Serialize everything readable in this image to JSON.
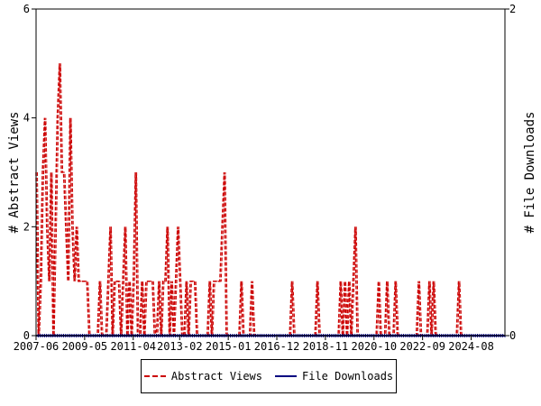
{
  "chart_data": {
    "type": "line",
    "ylabel_left": "# Abstract Views",
    "ylabel_right": "# File Downloads",
    "yleft_range": [
      0,
      6
    ],
    "yleft_ticks": [
      "0",
      "2",
      "4",
      "6"
    ],
    "yright_range": [
      0,
      2
    ],
    "yright_ticks": [
      "0",
      "2"
    ],
    "x_range": [
      "2007-06",
      "2025-12"
    ],
    "x_ticks": [
      "2007-06",
      "2009-05",
      "2011-04",
      "2013-02",
      "2015-01",
      "2016-12",
      "2018-11",
      "2020-10",
      "2022-09",
      "2024-08"
    ],
    "legend_position": "bottom-center",
    "grid": false,
    "series": [
      {
        "name": "Abstract Views",
        "color": "#cc0000",
        "style": "dashed",
        "axis": "left",
        "points": [
          [
            "2007-06",
            3
          ],
          [
            "2007-07",
            0
          ],
          [
            "2007-08",
            1
          ],
          [
            "2007-09",
            3
          ],
          [
            "2007-10",
            4
          ],
          [
            "2007-11",
            2
          ],
          [
            "2007-12",
            1
          ],
          [
            "2008-01",
            3
          ],
          [
            "2008-02",
            0
          ],
          [
            "2008-03",
            2
          ],
          [
            "2008-04",
            4
          ],
          [
            "2008-05",
            5
          ],
          [
            "2008-06",
            3
          ],
          [
            "2008-07",
            3
          ],
          [
            "2008-08",
            2
          ],
          [
            "2008-09",
            1
          ],
          [
            "2008-10",
            4
          ],
          [
            "2008-11",
            2
          ],
          [
            "2008-12",
            1
          ],
          [
            "2009-01",
            2
          ],
          [
            "2009-02",
            1
          ],
          [
            "2009-03",
            1
          ],
          [
            "2009-04",
            1
          ],
          [
            "2009-05",
            1
          ],
          [
            "2009-06",
            1
          ],
          [
            "2009-07",
            0
          ],
          [
            "2009-08",
            0
          ],
          [
            "2009-09",
            0
          ],
          [
            "2009-10",
            0
          ],
          [
            "2009-11",
            0
          ],
          [
            "2009-12",
            1
          ],
          [
            "2010-01",
            0
          ],
          [
            "2010-02",
            0
          ],
          [
            "2010-03",
            0
          ],
          [
            "2010-04",
            1
          ],
          [
            "2010-05",
            2
          ],
          [
            "2010-06",
            0
          ],
          [
            "2010-07",
            1
          ],
          [
            "2010-08",
            1
          ],
          [
            "2010-09",
            1
          ],
          [
            "2010-10",
            0
          ],
          [
            "2010-11",
            1
          ],
          [
            "2010-12",
            2
          ],
          [
            "2011-01",
            0
          ],
          [
            "2011-02",
            1
          ],
          [
            "2011-03",
            0
          ],
          [
            "2011-04",
            1
          ],
          [
            "2011-05",
            3
          ],
          [
            "2011-06",
            0
          ],
          [
            "2011-07",
            0
          ],
          [
            "2011-08",
            1
          ],
          [
            "2011-09",
            0
          ],
          [
            "2011-10",
            1
          ],
          [
            "2011-11",
            1
          ],
          [
            "2011-12",
            1
          ],
          [
            "2012-01",
            1
          ],
          [
            "2012-02",
            0
          ],
          [
            "2012-03",
            0
          ],
          [
            "2012-04",
            1
          ],
          [
            "2012-05",
            0
          ],
          [
            "2012-06",
            1
          ],
          [
            "2012-07",
            1
          ],
          [
            "2012-08",
            2
          ],
          [
            "2012-09",
            0
          ],
          [
            "2012-10",
            1
          ],
          [
            "2012-11",
            0
          ],
          [
            "2012-12",
            1
          ],
          [
            "2013-01",
            2
          ],
          [
            "2013-02",
            1
          ],
          [
            "2013-03",
            0
          ],
          [
            "2013-04",
            0
          ],
          [
            "2013-05",
            1
          ],
          [
            "2013-06",
            0
          ],
          [
            "2013-07",
            1
          ],
          [
            "2013-08",
            1
          ],
          [
            "2013-09",
            1
          ],
          [
            "2013-10",
            0
          ],
          [
            "2013-11",
            0
          ],
          [
            "2013-12",
            0
          ],
          [
            "2014-01",
            0
          ],
          [
            "2014-02",
            0
          ],
          [
            "2014-03",
            0
          ],
          [
            "2014-04",
            1
          ],
          [
            "2014-05",
            0
          ],
          [
            "2014-06",
            1
          ],
          [
            "2014-07",
            1
          ],
          [
            "2014-08",
            1
          ],
          [
            "2014-09",
            1
          ],
          [
            "2014-10",
            2
          ],
          [
            "2014-11",
            3
          ],
          [
            "2014-12",
            0
          ],
          [
            "2015-01",
            0
          ],
          [
            "2015-02",
            0
          ],
          [
            "2015-03",
            0
          ],
          [
            "2015-04",
            0
          ],
          [
            "2015-05",
            0
          ],
          [
            "2015-06",
            0
          ],
          [
            "2015-07",
            1
          ],
          [
            "2015-08",
            0
          ],
          [
            "2015-09",
            0
          ],
          [
            "2015-10",
            0
          ],
          [
            "2015-11",
            0
          ],
          [
            "2015-12",
            1
          ],
          [
            "2016-01",
            0
          ],
          [
            "2016-02",
            0
          ],
          [
            "2016-03",
            0
          ],
          [
            "2016-04",
            0
          ],
          [
            "2016-05",
            0
          ],
          [
            "2016-06",
            0
          ],
          [
            "2016-07",
            0
          ],
          [
            "2016-08",
            0
          ],
          [
            "2016-09",
            0
          ],
          [
            "2016-10",
            0
          ],
          [
            "2016-11",
            0
          ],
          [
            "2016-12",
            0
          ],
          [
            "2017-01",
            0
          ],
          [
            "2017-02",
            0
          ],
          [
            "2017-03",
            0
          ],
          [
            "2017-04",
            0
          ],
          [
            "2017-05",
            0
          ],
          [
            "2017-06",
            0
          ],
          [
            "2017-07",
            1
          ],
          [
            "2017-08",
            0
          ],
          [
            "2017-09",
            0
          ],
          [
            "2017-10",
            0
          ],
          [
            "2017-11",
            0
          ],
          [
            "2017-12",
            0
          ],
          [
            "2018-01",
            0
          ],
          [
            "2018-02",
            0
          ],
          [
            "2018-03",
            0
          ],
          [
            "2018-04",
            0
          ],
          [
            "2018-05",
            0
          ],
          [
            "2018-06",
            0
          ],
          [
            "2018-07",
            1
          ],
          [
            "2018-08",
            0
          ],
          [
            "2018-09",
            0
          ],
          [
            "2018-10",
            0
          ],
          [
            "2018-11",
            0
          ],
          [
            "2018-12",
            0
          ],
          [
            "2019-01",
            0
          ],
          [
            "2019-02",
            0
          ],
          [
            "2019-03",
            0
          ],
          [
            "2019-04",
            0
          ],
          [
            "2019-05",
            0
          ],
          [
            "2019-06",
            1
          ],
          [
            "2019-07",
            0
          ],
          [
            "2019-08",
            1
          ],
          [
            "2019-09",
            0
          ],
          [
            "2019-10",
            1
          ],
          [
            "2019-11",
            0
          ],
          [
            "2019-12",
            1
          ],
          [
            "2020-01",
            2
          ],
          [
            "2020-02",
            0
          ],
          [
            "2020-03",
            0
          ],
          [
            "2020-04",
            0
          ],
          [
            "2020-05",
            0
          ],
          [
            "2020-06",
            0
          ],
          [
            "2020-07",
            0
          ],
          [
            "2020-08",
            0
          ],
          [
            "2020-09",
            0
          ],
          [
            "2020-10",
            0
          ],
          [
            "2020-11",
            0
          ],
          [
            "2020-12",
            1
          ],
          [
            "2021-01",
            0
          ],
          [
            "2021-02",
            0
          ],
          [
            "2021-03",
            0
          ],
          [
            "2021-04",
            1
          ],
          [
            "2021-05",
            0
          ],
          [
            "2021-06",
            0
          ],
          [
            "2021-07",
            0
          ],
          [
            "2021-08",
            1
          ],
          [
            "2021-09",
            0
          ],
          [
            "2021-10",
            0
          ],
          [
            "2021-11",
            0
          ],
          [
            "2021-12",
            0
          ],
          [
            "2022-01",
            0
          ],
          [
            "2022-02",
            0
          ],
          [
            "2022-03",
            0
          ],
          [
            "2022-04",
            0
          ],
          [
            "2022-05",
            0
          ],
          [
            "2022-06",
            0
          ],
          [
            "2022-07",
            1
          ],
          [
            "2022-08",
            0
          ],
          [
            "2022-09",
            0
          ],
          [
            "2022-10",
            0
          ],
          [
            "2022-11",
            0
          ],
          [
            "2022-12",
            1
          ],
          [
            "2023-01",
            0
          ],
          [
            "2023-02",
            1
          ],
          [
            "2023-03",
            0
          ],
          [
            "2023-04",
            0
          ],
          [
            "2023-05",
            0
          ],
          [
            "2023-06",
            0
          ],
          [
            "2023-07",
            0
          ],
          [
            "2023-08",
            0
          ],
          [
            "2023-09",
            0
          ],
          [
            "2023-10",
            0
          ],
          [
            "2023-11",
            0
          ],
          [
            "2023-12",
            0
          ],
          [
            "2024-01",
            0
          ],
          [
            "2024-02",
            1
          ],
          [
            "2024-03",
            0
          ],
          [
            "2024-04",
            0
          ],
          [
            "2024-05",
            0
          ],
          [
            "2024-06",
            0
          ],
          [
            "2024-07",
            0
          ],
          [
            "2024-08",
            0
          ],
          [
            "2024-09",
            0
          ],
          [
            "2024-10",
            0
          ],
          [
            "2024-11",
            0
          ],
          [
            "2024-12",
            0
          ],
          [
            "2025-01",
            0
          ],
          [
            "2025-02",
            0
          ],
          [
            "2025-03",
            0
          ],
          [
            "2025-04",
            0
          ],
          [
            "2025-05",
            0
          ],
          [
            "2025-06",
            0
          ],
          [
            "2025-07",
            0
          ],
          [
            "2025-08",
            0
          ],
          [
            "2025-09",
            0
          ],
          [
            "2025-10",
            0
          ],
          [
            "2025-11",
            0
          ],
          [
            "2025-12",
            0
          ]
        ]
      },
      {
        "name": "File Downloads",
        "color": "#000080",
        "style": "solid",
        "axis": "right",
        "values_constant": 0,
        "range": [
          "2007-06",
          "2025-12"
        ]
      }
    ]
  }
}
